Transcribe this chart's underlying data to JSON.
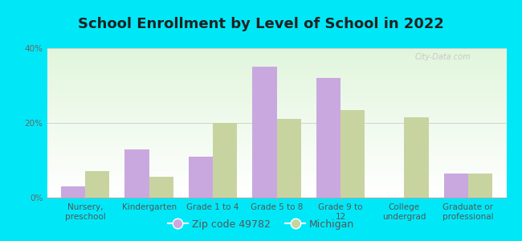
{
  "title": "School Enrollment by Level of School in 2022",
  "categories": [
    "Nursery,\npreschool",
    "Kindergarten",
    "Grade 1 to 4",
    "Grade 5 to 8",
    "Grade 9 to\n12",
    "College\nundergrad",
    "Graduate or\nprofessional"
  ],
  "zip_values": [
    3.0,
    13.0,
    11.0,
    35.0,
    32.0,
    0.0,
    6.5
  ],
  "michigan_values": [
    7.0,
    5.5,
    20.0,
    21.0,
    23.5,
    21.5,
    6.5
  ],
  "zip_color": "#c9a8e0",
  "michigan_color": "#c8d4a0",
  "background_outer": "#00e8f8",
  "ylim": [
    0,
    40
  ],
  "yticks": [
    0,
    20,
    40
  ],
  "ytick_labels": [
    "0%",
    "20%",
    "40%"
  ],
  "legend_zip_label": "Zip code 49782",
  "legend_michigan_label": "Michigan",
  "bar_width": 0.38,
  "title_fontsize": 13,
  "tick_fontsize": 7.5,
  "legend_fontsize": 9
}
